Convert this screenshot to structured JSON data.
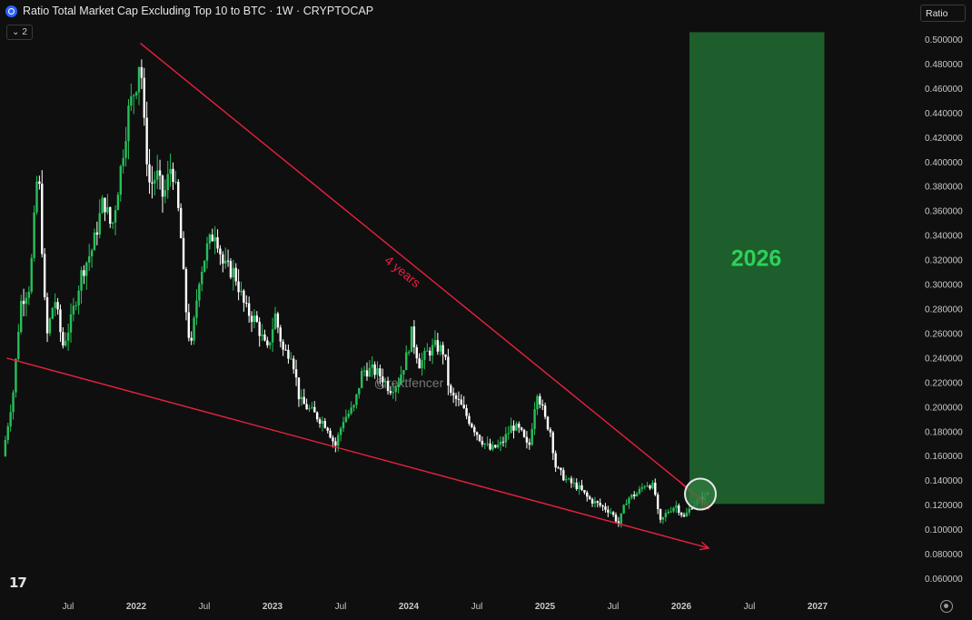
{
  "header": {
    "title": "Ratio Total Market Cap Excluding Top 10 to BTC · 1W · CRYPTOCAP",
    "indicator_count": "2",
    "scale_label": "Ratio"
  },
  "colors": {
    "background": "#0f0f0f",
    "up_candle": "#26c05a",
    "down_candle": "#ffffff",
    "trendline": "#e8213f",
    "projection_box": "#1d5e2c",
    "projection_text": "#2ed159"
  },
  "chart_data": {
    "type": "line",
    "title": "Ratio Total Market Cap Excluding Top 10 to BTC · 1W · CRYPTOCAP",
    "y_axis": {
      "ylim": [
        0.05,
        0.51
      ],
      "ticks": [
        "0.500000",
        "0.480000",
        "0.460000",
        "0.440000",
        "0.420000",
        "0.400000",
        "0.380000",
        "0.360000",
        "0.340000",
        "0.320000",
        "0.300000",
        "0.280000",
        "0.260000",
        "0.240000",
        "0.220000",
        "0.200000",
        "0.180000",
        "0.160000",
        "0.140000",
        "0.120000",
        "0.100000",
        "0.080000",
        "0.060000"
      ],
      "tick_values": [
        0.5,
        0.48,
        0.46,
        0.44,
        0.42,
        0.4,
        0.38,
        0.36,
        0.34,
        0.32,
        0.3,
        0.28,
        0.26,
        0.24,
        0.22,
        0.2,
        0.18,
        0.16,
        0.14,
        0.12,
        0.1,
        0.08,
        0.06
      ]
    },
    "x_axis": {
      "xlim": [
        2021.0,
        2027.7
      ],
      "ticks": [
        {
          "label": "Jul",
          "t": 2021.5,
          "bold": false
        },
        {
          "label": "2022",
          "t": 2022.0,
          "bold": true
        },
        {
          "label": "Jul",
          "t": 2022.5,
          "bold": false
        },
        {
          "label": "2023",
          "t": 2023.0,
          "bold": true
        },
        {
          "label": "Jul",
          "t": 2023.5,
          "bold": false
        },
        {
          "label": "2024",
          "t": 2024.0,
          "bold": true
        },
        {
          "label": "Jul",
          "t": 2024.5,
          "bold": false
        },
        {
          "label": "2025",
          "t": 2025.0,
          "bold": true
        },
        {
          "label": "Jul",
          "t": 2025.5,
          "bold": false
        },
        {
          "label": "2026",
          "t": 2026.0,
          "bold": true
        },
        {
          "label": "Jul",
          "t": 2026.5,
          "bold": false
        },
        {
          "label": "2027",
          "t": 2027.0,
          "bold": true
        }
      ]
    },
    "series": [
      {
        "values": [
          [
            2021.02,
            0.16
          ],
          [
            2021.1,
            0.215
          ],
          [
            2021.15,
            0.285
          ],
          [
            2021.22,
            0.3
          ],
          [
            2021.28,
            0.4
          ],
          [
            2021.34,
            0.255
          ],
          [
            2021.4,
            0.29
          ],
          [
            2021.46,
            0.25
          ],
          [
            2021.52,
            0.27
          ],
          [
            2021.6,
            0.31
          ],
          [
            2021.68,
            0.33
          ],
          [
            2021.76,
            0.37
          ],
          [
            2021.82,
            0.345
          ],
          [
            2021.88,
            0.39
          ],
          [
            2021.94,
            0.44
          ],
          [
            2022.0,
            0.465
          ],
          [
            2022.03,
            0.49
          ],
          [
            2022.06,
            0.425
          ],
          [
            2022.1,
            0.38
          ],
          [
            2022.15,
            0.39
          ],
          [
            2022.2,
            0.37
          ],
          [
            2022.26,
            0.4
          ],
          [
            2022.32,
            0.35
          ],
          [
            2022.36,
            0.285
          ],
          [
            2022.4,
            0.245
          ],
          [
            2022.46,
            0.305
          ],
          [
            2022.52,
            0.33
          ],
          [
            2022.58,
            0.345
          ],
          [
            2022.64,
            0.315
          ],
          [
            2022.72,
            0.31
          ],
          [
            2022.8,
            0.28
          ],
          [
            2022.88,
            0.27
          ],
          [
            2022.96,
            0.245
          ],
          [
            2023.02,
            0.275
          ],
          [
            2023.08,
            0.245
          ],
          [
            2023.14,
            0.245
          ],
          [
            2023.2,
            0.205
          ],
          [
            2023.3,
            0.195
          ],
          [
            2023.4,
            0.185
          ],
          [
            2023.46,
            0.168
          ],
          [
            2023.52,
            0.19
          ],
          [
            2023.6,
            0.2
          ],
          [
            2023.66,
            0.23
          ],
          [
            2023.74,
            0.23
          ],
          [
            2023.8,
            0.225
          ],
          [
            2023.86,
            0.215
          ],
          [
            2023.92,
            0.22
          ],
          [
            2023.98,
            0.24
          ],
          [
            2024.02,
            0.26
          ],
          [
            2024.08,
            0.235
          ],
          [
            2024.14,
            0.245
          ],
          [
            2024.2,
            0.25
          ],
          [
            2024.26,
            0.245
          ],
          [
            2024.3,
            0.21
          ],
          [
            2024.36,
            0.205
          ],
          [
            2024.44,
            0.19
          ],
          [
            2024.52,
            0.175
          ],
          [
            2024.6,
            0.165
          ],
          [
            2024.68,
            0.17
          ],
          [
            2024.76,
            0.185
          ],
          [
            2024.82,
            0.18
          ],
          [
            2024.88,
            0.165
          ],
          [
            2024.94,
            0.215
          ],
          [
            2025.0,
            0.19
          ],
          [
            2025.04,
            0.18
          ],
          [
            2025.08,
            0.15
          ],
          [
            2025.16,
            0.14
          ],
          [
            2025.24,
            0.135
          ],
          [
            2025.32,
            0.125
          ],
          [
            2025.4,
            0.12
          ],
          [
            2025.48,
            0.115
          ],
          [
            2025.54,
            0.105
          ],
          [
            2025.6,
            0.125
          ],
          [
            2025.68,
            0.13
          ],
          [
            2025.74,
            0.138
          ],
          [
            2025.8,
            0.135
          ],
          [
            2025.84,
            0.105
          ],
          [
            2025.9,
            0.115
          ],
          [
            2025.96,
            0.12
          ],
          [
            2026.02,
            0.11
          ],
          [
            2026.08,
            0.12
          ],
          [
            2026.14,
            0.125
          ],
          [
            2026.2,
            0.13
          ]
        ]
      }
    ],
    "annotations": {
      "upper_trendline": [
        [
          2022.03,
          0.497
        ],
        [
          2026.2,
          0.12
        ]
      ],
      "upper_arrow": [
        [
          2025.98,
          0.14
        ],
        [
          2026.2,
          0.117
        ]
      ],
      "lower_trendline": [
        [
          2021.05,
          0.24
        ],
        [
          2026.2,
          0.085
        ]
      ],
      "trendline_label": "4 years",
      "trendline_label_pos": [
        2023.95,
        0.31
      ],
      "projection_box": {
        "t_start": 2026.06,
        "t_end": 2027.05,
        "y_low": 0.121,
        "y_high": 0.506
      },
      "projection_label": "2026",
      "projection_label_pos": [
        2026.55,
        0.32
      ],
      "highlight_circle": [
        2026.14,
        0.129
      ],
      "watermark": "@rektfencer",
      "watermark_pos": [
        2024.0,
        0.219
      ]
    }
  }
}
